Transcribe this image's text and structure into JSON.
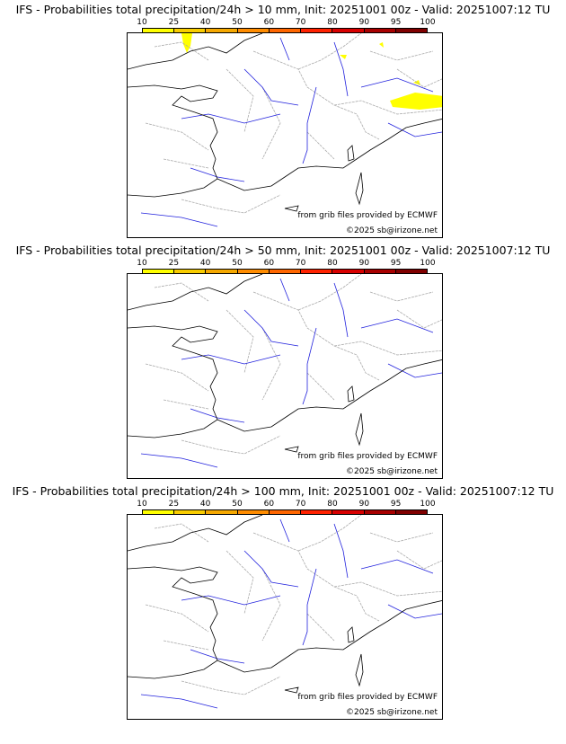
{
  "colorbar": {
    "ticks": [
      "10",
      "25",
      "40",
      "50",
      "60",
      "70",
      "80",
      "90",
      "95",
      "100"
    ],
    "colors": [
      "#ffff00",
      "#f8cc00",
      "#f5a800",
      "#ff8c00",
      "#ff6600",
      "#ff2200",
      "#d80000",
      "#a80000",
      "#800000"
    ]
  },
  "panels": [
    {
      "title": "IFS - Probabilities total precipitation/24h > 10 mm, Init: 20251001 00z - Valid: 20251007:12 TU",
      "has_precip": true
    },
    {
      "title": "IFS - Probabilities total precipitation/24h > 50 mm, Init: 20251001 00z - Valid: 20251007:12 TU",
      "has_precip": false
    },
    {
      "title": "IFS - Probabilities total precipitation/24h > 100 mm, Init: 20251001 00z - Valid: 20251007:12 TU",
      "has_precip": false
    }
  ],
  "credits": {
    "source": "from grib files provided by ECMWF",
    "copyright": "©2025 sb@irizone.net"
  },
  "colors": {
    "coast": "#000000",
    "borders": "#aaaaaa",
    "rivers": "#2222dd",
    "precip": "#ffff00"
  }
}
